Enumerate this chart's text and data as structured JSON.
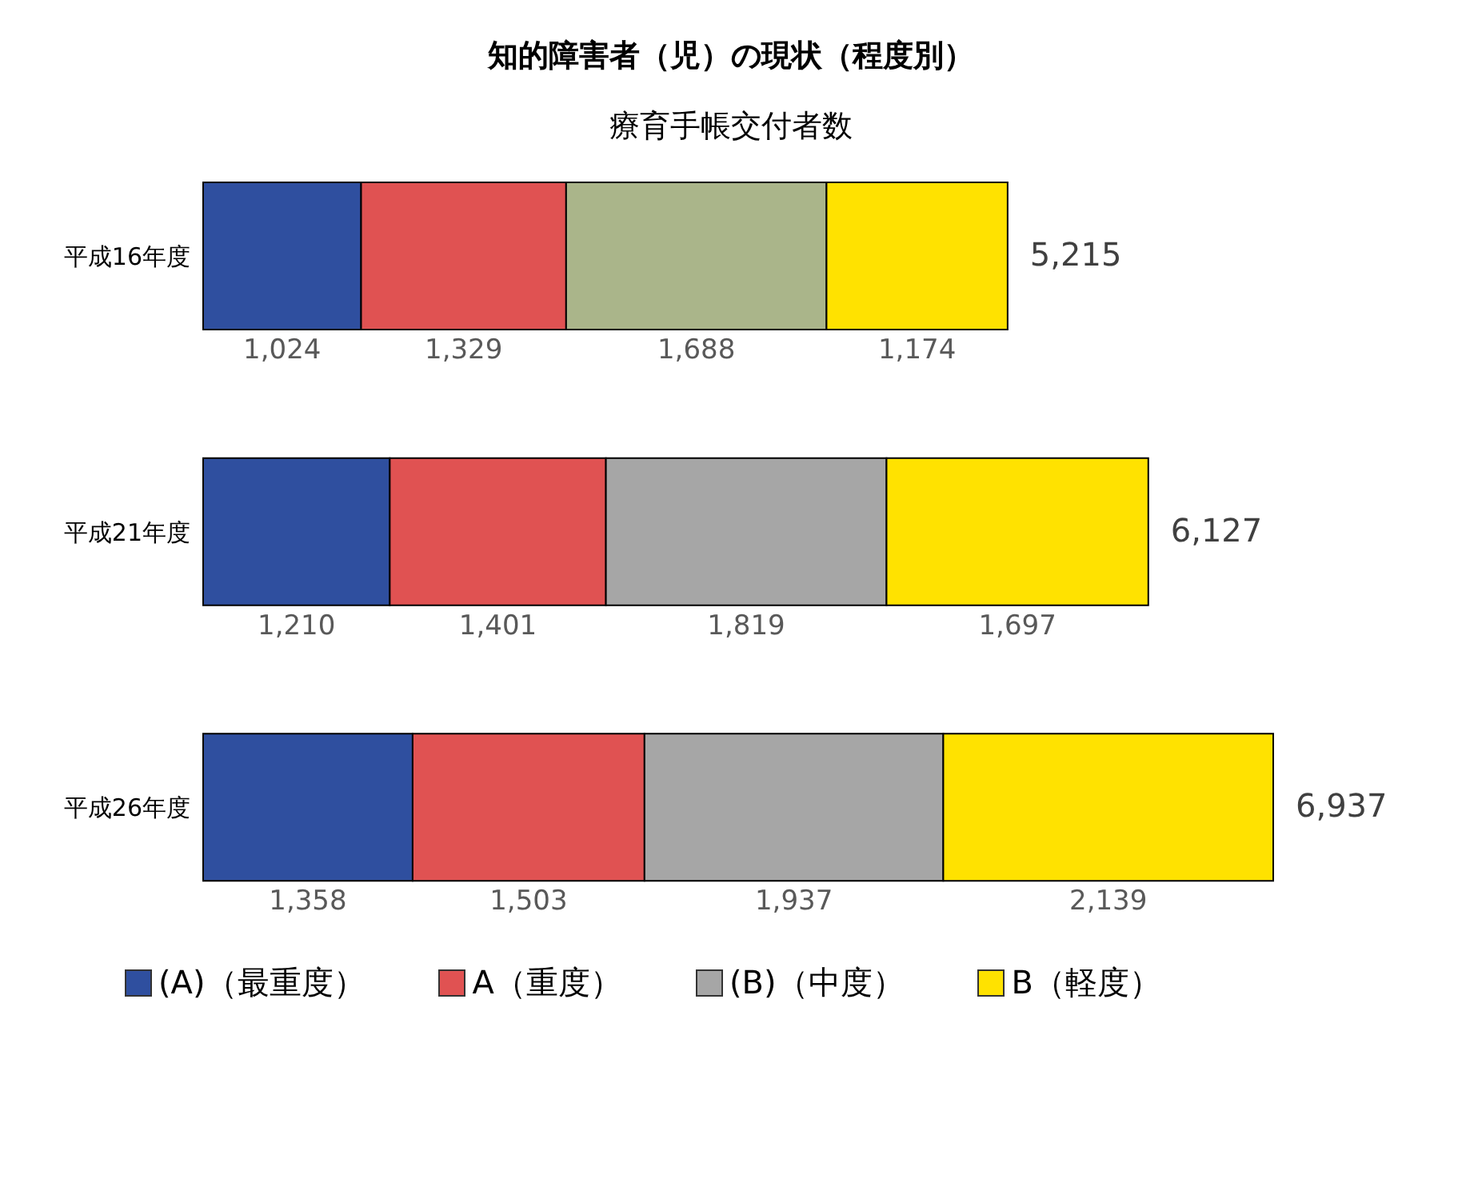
{
  "chart_data": {
    "type": "bar",
    "orientation": "horizontal",
    "stacked": true,
    "title": "知的障害者（児）の現状（程度別）",
    "subtitle": "療育手帳交付者数",
    "categories": [
      "平成16年度",
      "平成21年度",
      "平成26年度"
    ],
    "series": [
      {
        "name": "(A)（最重度）",
        "color": "#2f4f9f",
        "values": [
          1024,
          1210,
          1358
        ],
        "value_labels": [
          "1,024",
          "1,210",
          "1,358"
        ]
      },
      {
        "name": "A（重度）",
        "color": "#e05252",
        "values": [
          1329,
          1401,
          1503
        ],
        "value_labels": [
          "1,329",
          "1,401",
          "1,503"
        ]
      },
      {
        "name": "(B)（中度）",
        "color": "#a6a6a6",
        "colors": [
          "#aab58a",
          "#a6a6a6",
          "#a6a6a6"
        ],
        "values": [
          1688,
          1819,
          1937
        ],
        "value_labels": [
          "1,688",
          "1,819",
          "1,937"
        ]
      },
      {
        "name": "B（軽度）",
        "color": "#ffe200",
        "values": [
          1174,
          1697,
          2139
        ],
        "value_labels": [
          "1,174",
          "1,697",
          "2,139"
        ]
      }
    ],
    "totals": [
      "5,215",
      "6,127",
      "6,937"
    ],
    "legend": "bottom"
  }
}
